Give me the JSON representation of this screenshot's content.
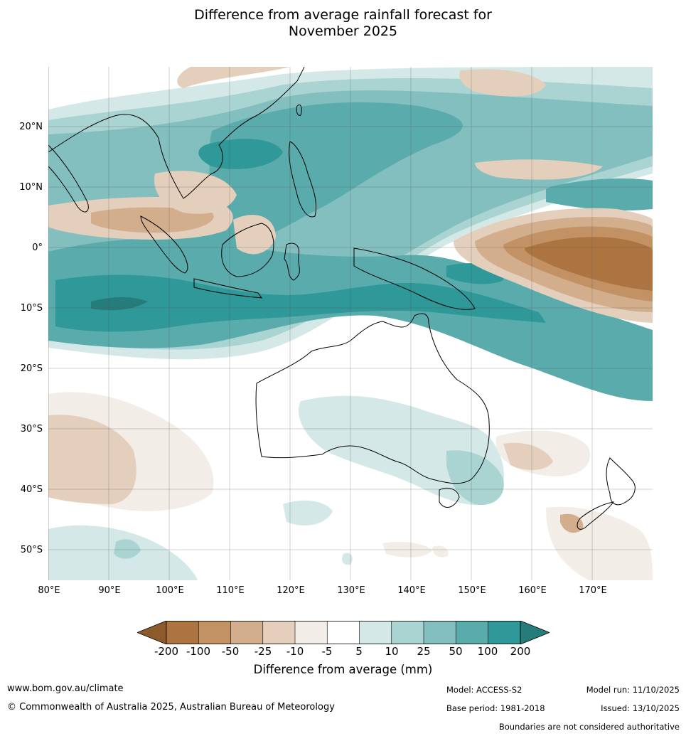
{
  "title_line1": "Difference from average rainfall forecast for",
  "title_line2": "November 2025",
  "map": {
    "latitude_labels": [
      "20°N",
      "10°N",
      "0°",
      "10°S",
      "20°S",
      "30°S",
      "40°S",
      "50°S"
    ],
    "longitude_labels": [
      "80°E",
      "90°E",
      "100°E",
      "110°E",
      "120°E",
      "130°E",
      "140°E",
      "150°E",
      "160°E",
      "170°E"
    ],
    "lat_range": [
      -55,
      30
    ],
    "lon_range": [
      80,
      180
    ]
  },
  "legend": {
    "title": "Difference from average (mm)",
    "ticks": [
      "-200",
      "-100",
      "-50",
      "-25",
      "-10",
      "-5",
      "5",
      "10",
      "25",
      "50",
      "100",
      "200"
    ],
    "colors": [
      "#8c5a2b",
      "#ab7440",
      "#c29164",
      "#d2ae8c",
      "#e4cfbc",
      "#f3ede7",
      "#ffffff",
      "#d4e9e7",
      "#a9d4d2",
      "#82bfbe",
      "#5aabac",
      "#2f9898",
      "#267b7b"
    ]
  },
  "footer": {
    "website": "www.bom.gov.au/climate",
    "copyright": "© Commonwealth of Australia 2025, Australian Bureau of Meteorology",
    "model": "Model: ACCESS-S2",
    "base_period": "Base period: 1981-2018",
    "model_run": "Model run: 11/10/2025",
    "issued": "Issued: 13/10/2025",
    "boundaries": "Boundaries are not considered authoritative"
  }
}
